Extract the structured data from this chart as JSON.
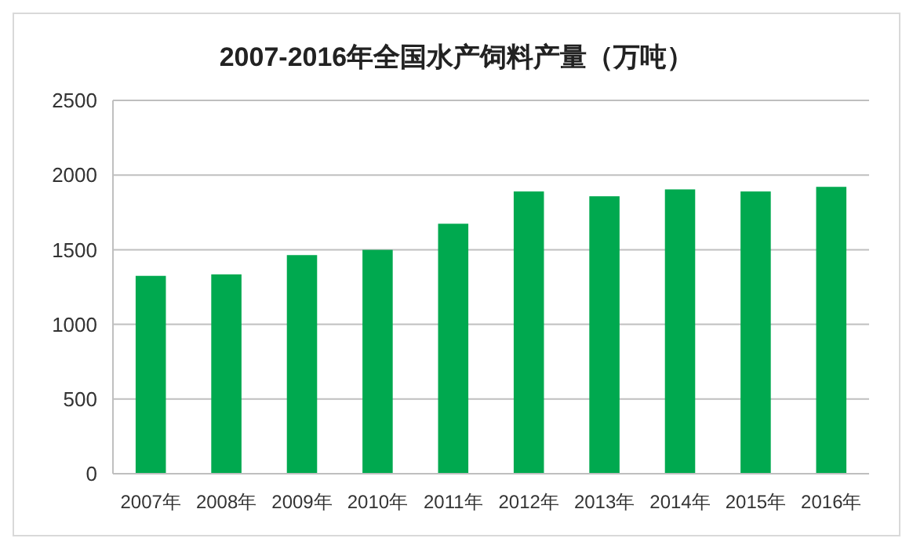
{
  "chart_data": {
    "type": "bar",
    "title": "2007-2016年全国水产饲料产量（万吨）",
    "categories": [
      "2007年",
      "2008年",
      "2009年",
      "2010年",
      "2011年",
      "2012年",
      "2013年",
      "2014年",
      "2015年",
      "2016年"
    ],
    "values": [
      1325,
      1335,
      1464,
      1499,
      1674,
      1890,
      1858,
      1904,
      1890,
      1921
    ],
    "color": "#00a94f",
    "ylim": [
      0,
      2500
    ],
    "yticks": [
      0,
      500,
      1000,
      1500,
      2000,
      2500
    ],
    "grid": "y"
  }
}
